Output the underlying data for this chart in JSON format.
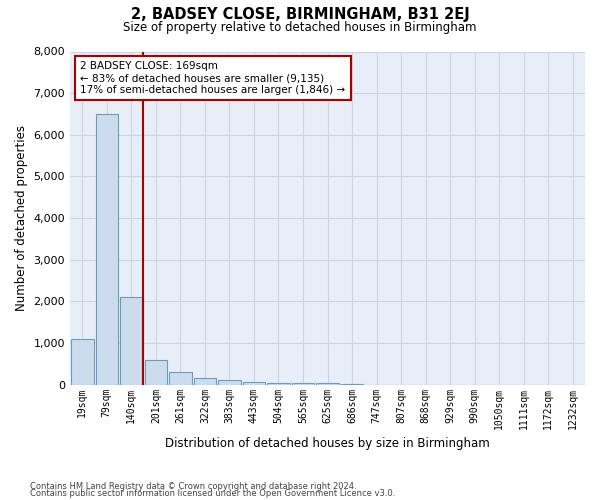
{
  "title": "2, BADSEY CLOSE, BIRMINGHAM, B31 2EJ",
  "subtitle": "Size of property relative to detached houses in Birmingham",
  "xlabel": "Distribution of detached houses by size in Birmingham",
  "ylabel": "Number of detached properties",
  "bin_labels": [
    "19sqm",
    "79sqm",
    "140sqm",
    "201sqm",
    "261sqm",
    "322sqm",
    "383sqm",
    "443sqm",
    "504sqm",
    "565sqm",
    "625sqm",
    "686sqm",
    "747sqm",
    "807sqm",
    "868sqm",
    "929sqm",
    "990sqm",
    "1050sqm",
    "1111sqm",
    "1172sqm",
    "1232sqm"
  ],
  "bar_heights": [
    1100,
    6500,
    2100,
    600,
    310,
    160,
    105,
    60,
    50,
    50,
    50,
    10,
    5,
    2,
    2,
    2,
    1,
    1,
    1,
    1,
    0
  ],
  "bar_color": "#ccdcec",
  "bar_edge_color": "#6a9cbd",
  "vline_color": "#aa0000",
  "annotation_text": "2 BADSEY CLOSE: 169sqm\n← 83% of detached houses are smaller (9,135)\n17% of semi-detached houses are larger (1,846) →",
  "annotation_box_color": "#ffffff",
  "annotation_box_edge": "#aa0000",
  "ylim": [
    0,
    8000
  ],
  "yticks": [
    0,
    1000,
    2000,
    3000,
    4000,
    5000,
    6000,
    7000,
    8000
  ],
  "grid_color": "#ccd5e5",
  "bg_color": "#e8eef8",
  "footnote1": "Contains HM Land Registry data © Crown copyright and database right 2024.",
  "footnote2": "Contains public sector information licensed under the Open Government Licence v3.0."
}
